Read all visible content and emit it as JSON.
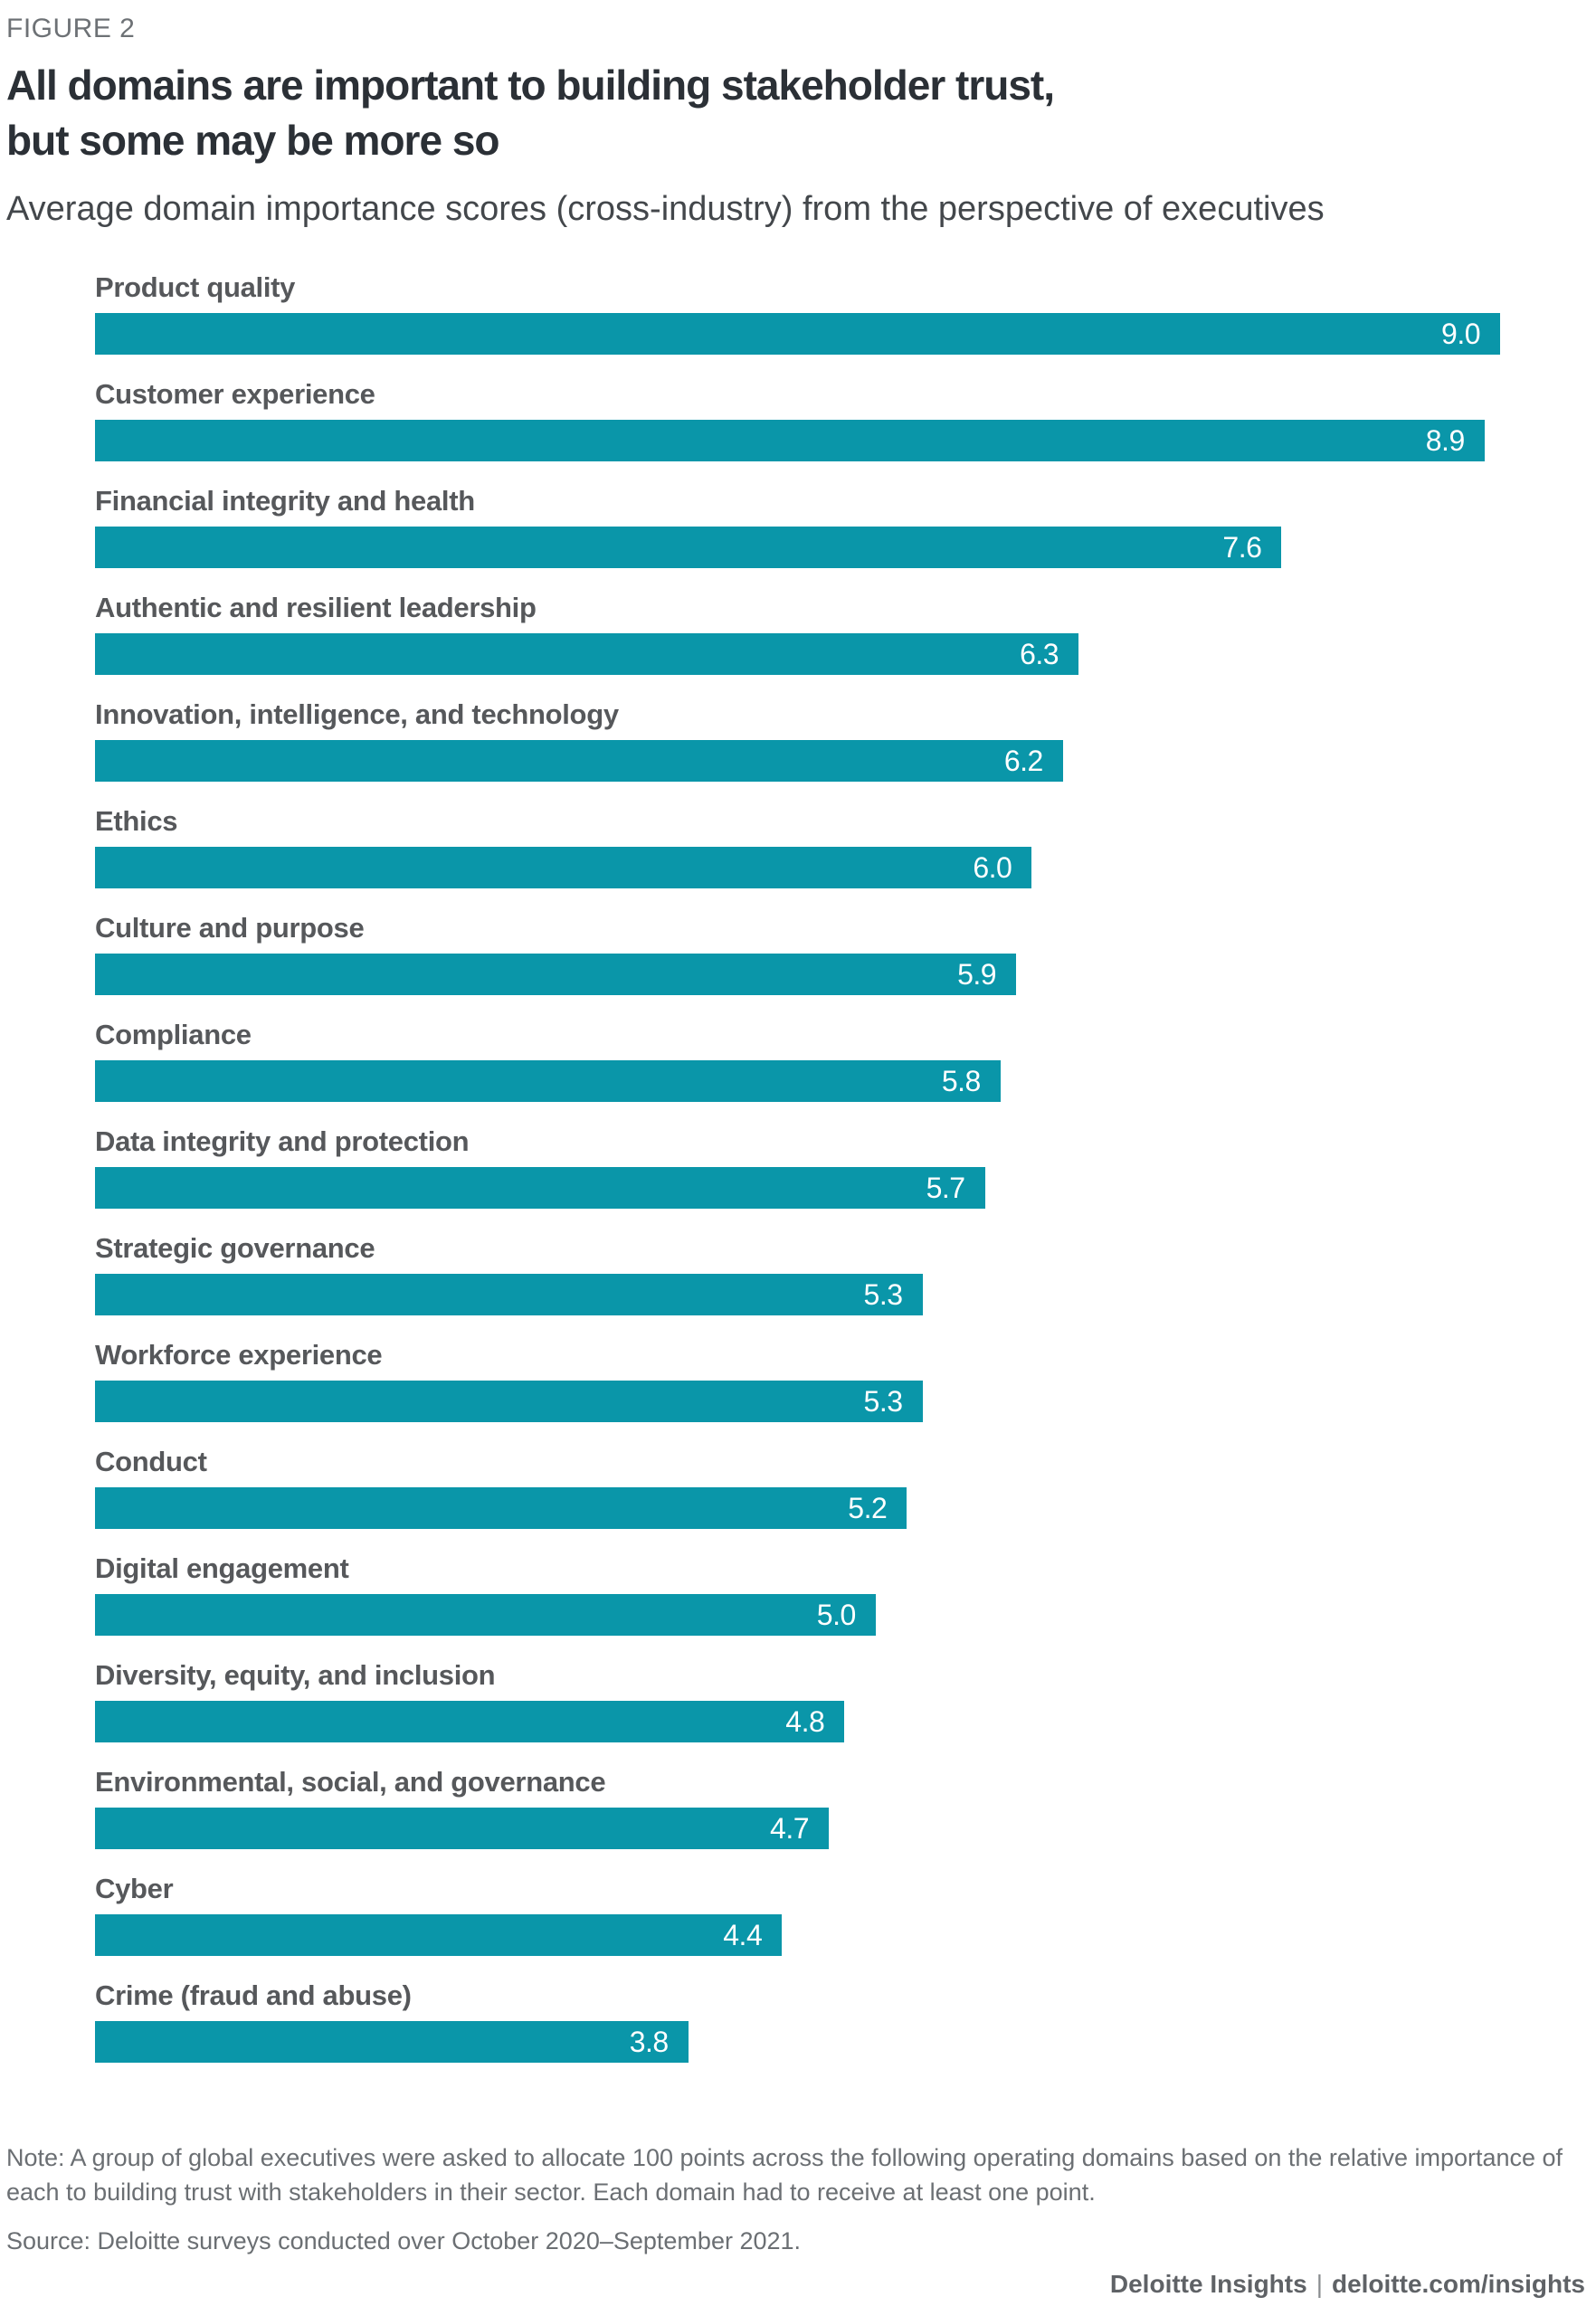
{
  "header": {
    "figure_label": "FIGURE 2",
    "title_line1": "All domains are important to building stakeholder trust,",
    "title_line2": "but some may be more so",
    "subtitle": "Average domain importance scores (cross-industry) from the perspective of executives"
  },
  "chart_data": {
    "type": "bar",
    "orientation": "horizontal",
    "title": "All domains are important to building stakeholder trust, but some may be more so",
    "subtitle": "Average domain importance scores (cross-industry) from the perspective of executives",
    "categories": [
      "Product quality",
      "Customer experience",
      "Financial integrity and health",
      "Authentic and resilient leadership",
      "Innovation, intelligence, and technology",
      "Ethics",
      "Culture and purpose",
      "Compliance",
      "Data integrity and protection",
      "Strategic governance",
      "Workforce experience",
      "Conduct",
      "Digital engagement",
      "Diversity, equity, and inclusion",
      "Environmental, social, and governance",
      "Cyber",
      "Crime (fraud and abuse)"
    ],
    "values": [
      9.0,
      8.9,
      7.6,
      6.3,
      6.2,
      6.0,
      5.9,
      5.8,
      5.7,
      5.3,
      5.3,
      5.2,
      5.0,
      4.8,
      4.7,
      4.4,
      3.8
    ],
    "xlim": [
      0,
      9.0
    ],
    "grid": false,
    "legend": false,
    "value_labels": "one decimal, white, inside bar at right end"
  },
  "colors": {
    "bar": "#0A96A9",
    "title": "#2B3036",
    "bar_label": "#56585B",
    "note": "#6B6F73"
  },
  "footer": {
    "note": "Note: A group of global executives were asked to allocate 100 points across the following operating domains based on the relative importance of each to building trust with stakeholders in their sector. Each domain had to receive at least one point.",
    "source": "Source: Deloitte surveys conducted over October 2020–September 2021.",
    "brand": "Deloitte Insights",
    "separator": "|",
    "site": "deloitte.com/insights"
  }
}
